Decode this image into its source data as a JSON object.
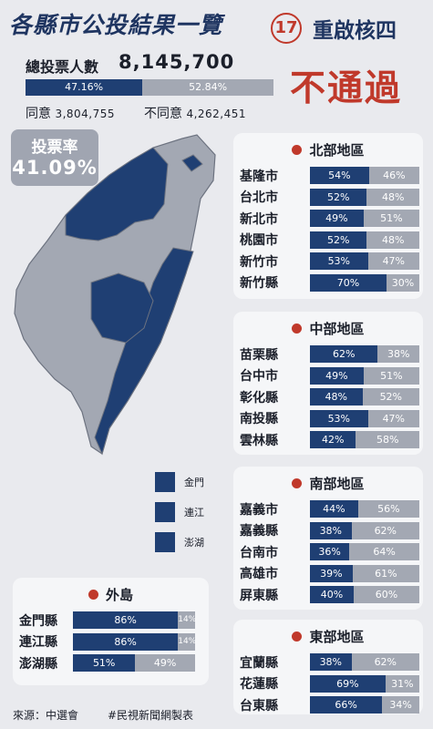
{
  "header": {
    "title": "各縣市公投結果一覽",
    "case_number": "17",
    "case_name": "重啟核四"
  },
  "summary": {
    "total_label": "總投票人數",
    "total_value": "8,145,700",
    "agree_pct": "47.16%",
    "disagree_pct": "52.84%",
    "agree_label": "同意",
    "agree_count": "3,804,755",
    "disagree_label": "不同意",
    "disagree_count": "4,262,451",
    "result": "不通過",
    "turnout_label": "投票率",
    "turnout_value": "41.09%"
  },
  "legend": [
    "金門",
    "連江",
    "澎湖"
  ],
  "colors": {
    "agree": "#1f3f73",
    "disagree": "#a3a8b3",
    "accent": "#c0392b"
  },
  "chart_data": {
    "type": "bar",
    "orientation": "horizontal-stacked",
    "groups": [
      {
        "region": "北部地區",
        "rows": [
          {
            "name": "基隆市",
            "agree": 54,
            "disagree": 46
          },
          {
            "name": "台北市",
            "agree": 52,
            "disagree": 48
          },
          {
            "name": "新北市",
            "agree": 49,
            "disagree": 51
          },
          {
            "name": "桃園市",
            "agree": 52,
            "disagree": 48
          },
          {
            "name": "新竹市",
            "agree": 53,
            "disagree": 47
          },
          {
            "name": "新竹縣",
            "agree": 70,
            "disagree": 30
          }
        ]
      },
      {
        "region": "中部地區",
        "rows": [
          {
            "name": "苗栗縣",
            "agree": 62,
            "disagree": 38
          },
          {
            "name": "台中市",
            "agree": 49,
            "disagree": 51
          },
          {
            "name": "彰化縣",
            "agree": 48,
            "disagree": 52
          },
          {
            "name": "南投縣",
            "agree": 53,
            "disagree": 47
          },
          {
            "name": "雲林縣",
            "agree": 42,
            "disagree": 58
          }
        ]
      },
      {
        "region": "南部地區",
        "rows": [
          {
            "name": "嘉義市",
            "agree": 44,
            "disagree": 56
          },
          {
            "name": "嘉義縣",
            "agree": 38,
            "disagree": 62
          },
          {
            "name": "台南市",
            "agree": 36,
            "disagree": 64
          },
          {
            "name": "高雄市",
            "agree": 39,
            "disagree": 61
          },
          {
            "name": "屏東縣",
            "agree": 40,
            "disagree": 60
          }
        ]
      },
      {
        "region": "東部地區",
        "rows": [
          {
            "name": "宜蘭縣",
            "agree": 38,
            "disagree": 62
          },
          {
            "name": "花蓮縣",
            "agree": 69,
            "disagree": 31
          },
          {
            "name": "台東縣",
            "agree": 66,
            "disagree": 34
          }
        ]
      },
      {
        "region": "外島",
        "rows": [
          {
            "name": "金門縣",
            "agree": 86,
            "disagree": 14
          },
          {
            "name": "連江縣",
            "agree": 86,
            "disagree": 14
          },
          {
            "name": "澎湖縣",
            "agree": 51,
            "disagree": 49
          }
        ]
      }
    ]
  },
  "footer": {
    "source": "來源：中選會",
    "credit": "#民視新聞網製表"
  }
}
